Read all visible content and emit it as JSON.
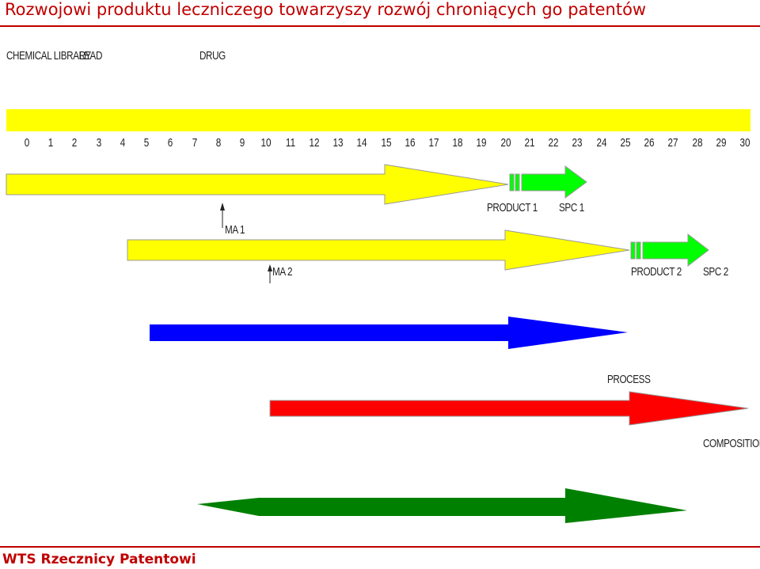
{
  "title": "Rozwojowi produktu leczniczego towarzyszy rozwój chroniących go patentów",
  "footer": "WTS Rzecznicy Patentowi",
  "stages": {
    "chemical_library": "CHEMICAL LIBRARY",
    "lead": "LEAD",
    "drug": "DRUG"
  },
  "timeline": {
    "ticks": [
      "0",
      "1",
      "2",
      "3",
      "4",
      "5",
      "6",
      "7",
      "8",
      "9",
      "10",
      "11",
      "12",
      "13",
      "14",
      "15",
      "16",
      "17",
      "18",
      "19",
      "20",
      "21",
      "22",
      "23",
      "24",
      "25",
      "26",
      "27",
      "28",
      "29",
      "30"
    ],
    "bar_color": "#ffff00"
  },
  "markers": {
    "ma1": "MA 1",
    "ma2": "MA 2",
    "product1": "PRODUCT 1",
    "spc1": "SPC 1",
    "product2": "PRODUCT 2",
    "spc2": "SPC 2"
  },
  "patent_types": {
    "process": "PROCESS",
    "composition": "COMPOSITION"
  },
  "colors": {
    "title": "#c00000",
    "product_patent": "#ffff00",
    "spc": "#00ff00",
    "blue_patent": "#0000ff",
    "process_patent": "#ff0000",
    "composition_patent": "#008000"
  }
}
